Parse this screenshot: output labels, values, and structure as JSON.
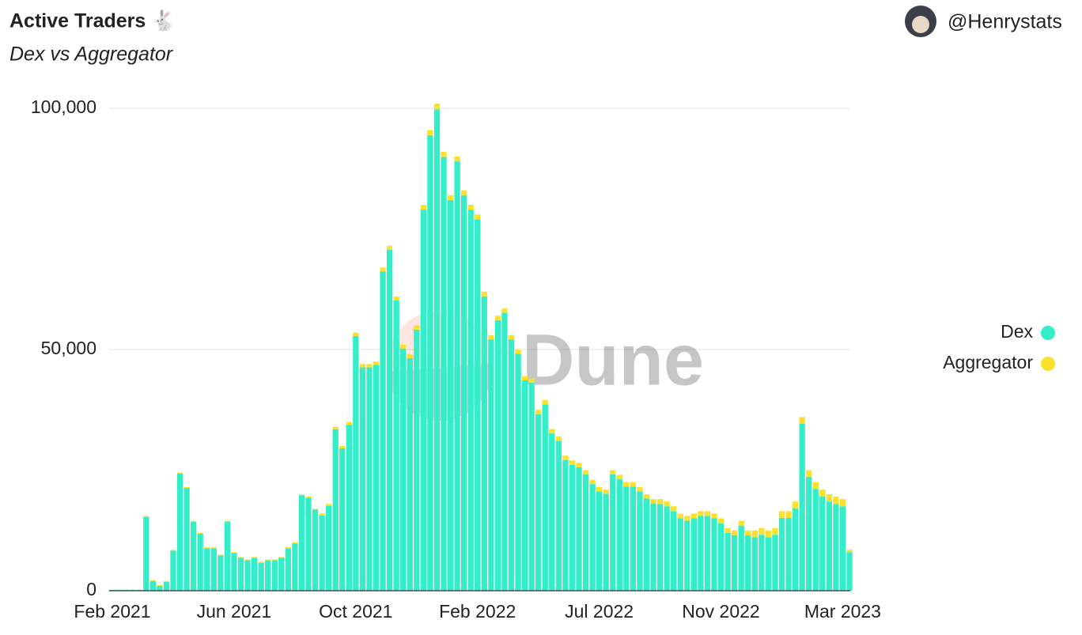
{
  "chart_data": {
    "type": "bar",
    "stacked": true,
    "title": "Active Traders 🐇",
    "subtitle": "Dex vs Aggregator",
    "author": "@Henrystats",
    "watermark": "Dune",
    "categories": [
      "Feb 2021",
      null,
      null,
      null,
      null,
      null,
      null,
      null,
      null,
      null,
      null,
      null,
      null,
      null,
      null,
      null,
      null,
      null,
      "Jun 2021",
      null,
      null,
      null,
      null,
      null,
      null,
      null,
      null,
      null,
      null,
      null,
      null,
      null,
      null,
      null,
      null,
      null,
      "Oct 2021",
      null,
      null,
      null,
      null,
      null,
      null,
      null,
      null,
      null,
      null,
      null,
      null,
      null,
      null,
      null,
      null,
      null,
      "Feb 2022",
      null,
      null,
      null,
      null,
      null,
      null,
      null,
      null,
      null,
      null,
      null,
      null,
      null,
      null,
      null,
      null,
      null,
      "Jul 2022",
      null,
      null,
      null,
      null,
      null,
      null,
      null,
      null,
      null,
      null,
      null,
      null,
      null,
      null,
      null,
      null,
      null,
      "Nov 2022",
      null,
      null,
      null,
      null,
      null,
      null,
      null,
      null,
      null,
      null,
      null,
      null,
      null,
      null,
      null,
      null,
      null,
      "Mar 2023",
      null
    ],
    "series": [
      {
        "name": "Dex",
        "color": "#33eec8",
        "values": [
          200,
          200,
          200,
          200,
          200,
          15300,
          2000,
          1000,
          1800,
          8300,
          24300,
          21300,
          14300,
          11800,
          8800,
          8800,
          7300,
          14300,
          7800,
          6800,
          6300,
          6800,
          5800,
          6300,
          6300,
          6800,
          8800,
          9800,
          19800,
          19300,
          16800,
          15600,
          17600,
          33500,
          29500,
          34400,
          52800,
          46300,
          46300,
          46800,
          66200,
          70700,
          60200,
          50200,
          48200,
          54100,
          79000,
          94400,
          99800,
          89900,
          81000,
          89000,
          82000,
          79000,
          77000,
          61000,
          52100,
          56100,
          57600,
          52100,
          49100,
          43600,
          43100,
          36600,
          38600,
          32600,
          31100,
          27100,
          26100,
          25600,
          24100,
          22100,
          20600,
          20100,
          24100,
          23100,
          21600,
          21600,
          20600,
          19100,
          18100,
          18000,
          17500,
          16500,
          15000,
          14500,
          15000,
          15500,
          15500,
          15000,
          14000,
          12000,
          11500,
          13500,
          11500,
          11100,
          11600,
          11100,
          11600,
          15100,
          15100,
          17100,
          34600,
          23600,
          21100,
          19500,
          18500,
          18000,
          17500,
          8000
        ]
      },
      {
        "name": "Aggregator",
        "color": "#fbe12c",
        "values": [
          0,
          0,
          0,
          0,
          0,
          200,
          200,
          200,
          200,
          200,
          200,
          200,
          200,
          200,
          200,
          200,
          200,
          200,
          200,
          200,
          200,
          200,
          200,
          200,
          200,
          200,
          200,
          200,
          200,
          200,
          200,
          400,
          400,
          500,
          500,
          600,
          700,
          700,
          700,
          700,
          800,
          800,
          800,
          800,
          800,
          900,
          1000,
          1100,
          1200,
          1100,
          1000,
          1000,
          1000,
          1000,
          1000,
          1000,
          900,
          900,
          900,
          900,
          900,
          900,
          900,
          900,
          900,
          900,
          900,
          900,
          900,
          900,
          900,
          900,
          900,
          900,
          900,
          900,
          900,
          900,
          900,
          900,
          900,
          1000,
          1000,
          1000,
          1000,
          1000,
          1000,
          1000,
          1000,
          1000,
          1000,
          1000,
          1000,
          1000,
          1000,
          1400,
          1400,
          1400,
          1400,
          1400,
          1400,
          1400,
          1400,
          1400,
          1400,
          1500,
          1500,
          1500,
          1500,
          500
        ]
      }
    ],
    "ylim": [
      0,
      100000
    ],
    "yticks": [
      0,
      {
        "value": 50000,
        "label": "50,000"
      },
      {
        "value": 100000,
        "label": "100,000"
      }
    ],
    "grid": true,
    "legend": "right"
  }
}
